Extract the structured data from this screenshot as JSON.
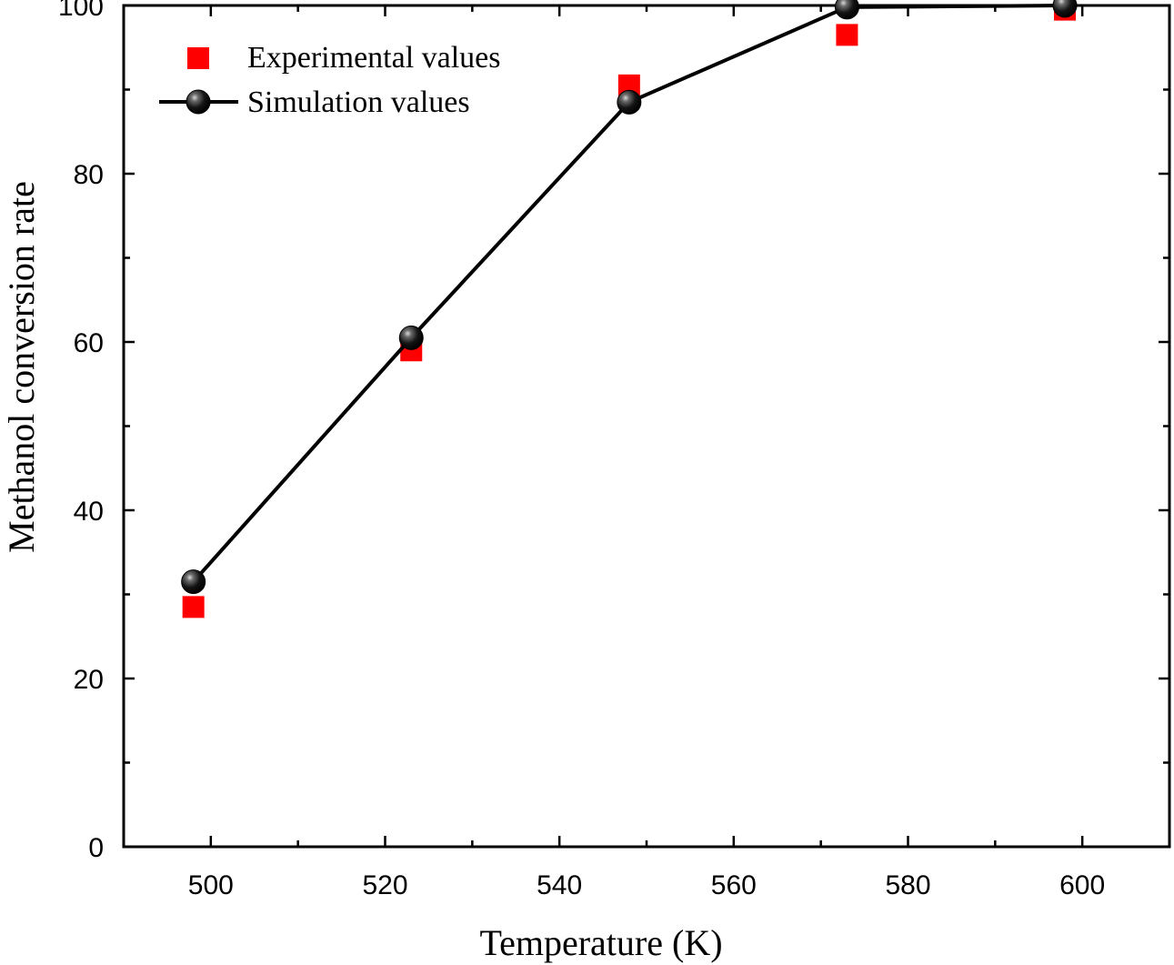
{
  "chart_data": {
    "type": "scatter",
    "xlabel": "Temperature (K)",
    "ylabel": "Methanol conversion rate",
    "xlim": [
      490,
      610
    ],
    "ylim": [
      0,
      100
    ],
    "x_ticks": [
      500,
      520,
      540,
      560,
      580,
      600
    ],
    "y_ticks": [
      0,
      20,
      40,
      60,
      80,
      100
    ],
    "grid": false,
    "legend_position": "top-left",
    "series": [
      {
        "name": "Experimental values",
        "style": "square-markers",
        "color": "#ff0000",
        "x": [
          498,
          523,
          548,
          573,
          598
        ],
        "values": [
          28.5,
          59.0,
          90.5,
          96.5,
          99.5
        ]
      },
      {
        "name": "Simulation values",
        "style": "line-with-sphere-markers",
        "color": "#000000",
        "x": [
          498,
          523,
          548,
          573,
          598
        ],
        "values": [
          31.5,
          60.5,
          88.5,
          99.8,
          100.0
        ]
      }
    ]
  }
}
